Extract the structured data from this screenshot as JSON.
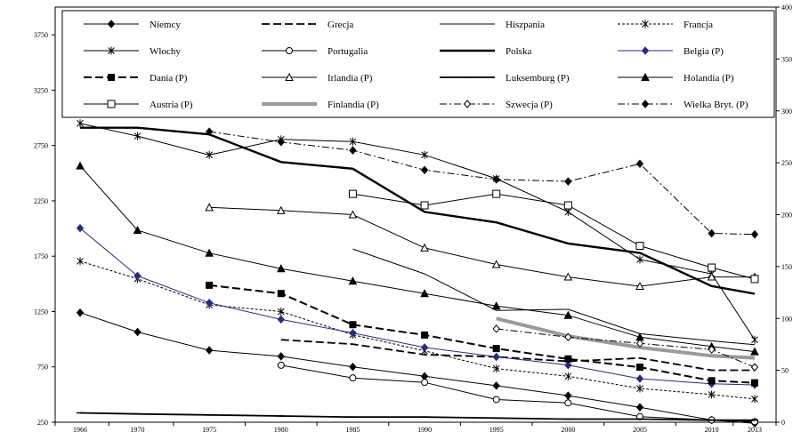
{
  "chart_data": {
    "type": "line",
    "title": "",
    "xlabel": "",
    "ylabel": "",
    "x": [
      1966,
      1970,
      1975,
      1980,
      1985,
      1990,
      1995,
      2000,
      2005,
      2010,
      2013
    ],
    "xtick_labels": [
      "1966",
      "1970",
      "1975",
      "1980",
      "1985",
      "1990",
      "1995",
      "2000",
      "2005",
      "2010",
      "2013"
    ],
    "ylim": [
      250,
      4000
    ],
    "yticks": [
      250,
      750,
      1250,
      1750,
      2250,
      2750,
      3250,
      3750
    ],
    "ytick_labels": [
      "250",
      "750",
      "1250",
      "1750",
      "2250",
      "2750",
      "3250",
      "3750"
    ],
    "y2lim": [
      0,
      400
    ],
    "y2ticks": [
      0,
      50,
      100,
      150,
      200,
      250,
      300,
      350,
      400
    ],
    "y2tick_labels": [
      "0",
      "50",
      "100",
      "150",
      "200",
      "250",
      "300",
      "350",
      "400"
    ],
    "grid": false,
    "legend_position": "top",
    "series": [
      {
        "name": "Niemcy",
        "axis": "left",
        "color": "#000000",
        "style": "solid",
        "width": 1,
        "marker": "diamond-filled",
        "values": [
          1240,
          1065,
          900,
          845,
          750,
          665,
          580,
          490,
          385,
          270,
          240
        ]
      },
      {
        "name": "Grecja",
        "axis": "left",
        "color": "#000000",
        "style": "dashed",
        "width": 1.8,
        "marker": "none",
        "values": [
          null,
          null,
          null,
          995,
          955,
          860,
          840,
          800,
          830,
          720,
          720
        ]
      },
      {
        "name": "Hiszpania",
        "axis": "left",
        "color": "#000000",
        "style": "solid",
        "width": 1,
        "marker": "none",
        "values": [
          null,
          null,
          null,
          null,
          1815,
          1590,
          1260,
          1270,
          1050,
          985,
          950
        ]
      },
      {
        "name": "Francja",
        "axis": "left",
        "color": "#000000",
        "style": "dotted",
        "width": 1,
        "marker": "star",
        "values": [
          1705,
          1545,
          1310,
          1250,
          1040,
          895,
          735,
          665,
          555,
          500,
          460
        ]
      },
      {
        "name": "Włochy",
        "axis": "left",
        "color": "#000000",
        "style": "solid",
        "width": 1,
        "marker": "star",
        "values": [
          2950,
          2835,
          2665,
          2805,
          2785,
          2665,
          2450,
          2150,
          1720,
          1590,
          995
        ]
      },
      {
        "name": "Portugalia",
        "axis": "left",
        "color": "#000000",
        "style": "solid",
        "width": 1,
        "marker": "circle-open",
        "values": [
          null,
          null,
          null,
          765,
          650,
          610,
          455,
          425,
          300,
          270,
          255
        ]
      },
      {
        "name": "Polska",
        "axis": "left",
        "color": "#000000",
        "style": "solid",
        "width": 2.4,
        "marker": "none",
        "values": [
          2910,
          2910,
          2850,
          2600,
          2540,
          2150,
          2055,
          1865,
          1780,
          1480,
          1410
        ]
      },
      {
        "name": "Belgia  (P)",
        "axis": "right",
        "color": "#2b2b7a",
        "style": "solid",
        "width": 1,
        "marker": "diamond-filled",
        "values": [
          187,
          141,
          115,
          99,
          86,
          72,
          63,
          55,
          42,
          37,
          36
        ]
      },
      {
        "name": "Dania (P)",
        "axis": "right",
        "color": "#000000",
        "style": "dashed",
        "width": 2,
        "marker": "square-filled",
        "values": [
          null,
          null,
          132,
          124,
          94,
          84,
          71,
          61,
          53,
          40,
          38
        ]
      },
      {
        "name": "Irlandia (P)",
        "axis": "right",
        "color": "#000000",
        "style": "solid",
        "width": 1,
        "marker": "triangle-open",
        "values": [
          null,
          null,
          207,
          204,
          200,
          168,
          152,
          140,
          131,
          140,
          140
        ]
      },
      {
        "name": "Luksemburg (P)",
        "axis": "right",
        "color": "#000000",
        "style": "solid",
        "width": 1.8,
        "marker": "dash",
        "values": [
          9,
          8,
          7,
          6,
          5,
          5,
          4,
          3,
          3,
          2,
          2
        ]
      },
      {
        "name": "Holandia (P)",
        "axis": "right",
        "color": "#000000",
        "style": "solid",
        "width": 1,
        "marker": "triangle-filled",
        "values": [
          247,
          185,
          163,
          148,
          136,
          124,
          112,
          103,
          82,
          73,
          68
        ]
      },
      {
        "name": "Austria (P)",
        "axis": "right",
        "color": "#000000",
        "style": "solid",
        "width": 1,
        "marker": "square-open",
        "values": [
          null,
          null,
          null,
          null,
          220,
          209,
          220,
          209,
          170,
          149,
          138
        ]
      },
      {
        "name": "Finlandia (P)",
        "axis": "right",
        "color": "#9a9a9a",
        "style": "solid",
        "width": 4,
        "marker": "none",
        "values": [
          null,
          null,
          null,
          null,
          null,
          null,
          100,
          83,
          72,
          64,
          62
        ]
      },
      {
        "name": "Szwecja (P)",
        "axis": "right",
        "color": "#000000",
        "style": "dashdot",
        "width": 1,
        "marker": "diamond-open",
        "values": [
          null,
          null,
          null,
          null,
          null,
          null,
          90,
          82,
          76,
          70,
          53
        ]
      },
      {
        "name": "Wielka Bryt.  (P)",
        "axis": "right",
        "color": "#000000",
        "style": "dashdot",
        "width": 1,
        "marker": "diamond-filled",
        "values": [
          null,
          null,
          280,
          270,
          262,
          243,
          234,
          232,
          249,
          182,
          181
        ]
      }
    ]
  }
}
